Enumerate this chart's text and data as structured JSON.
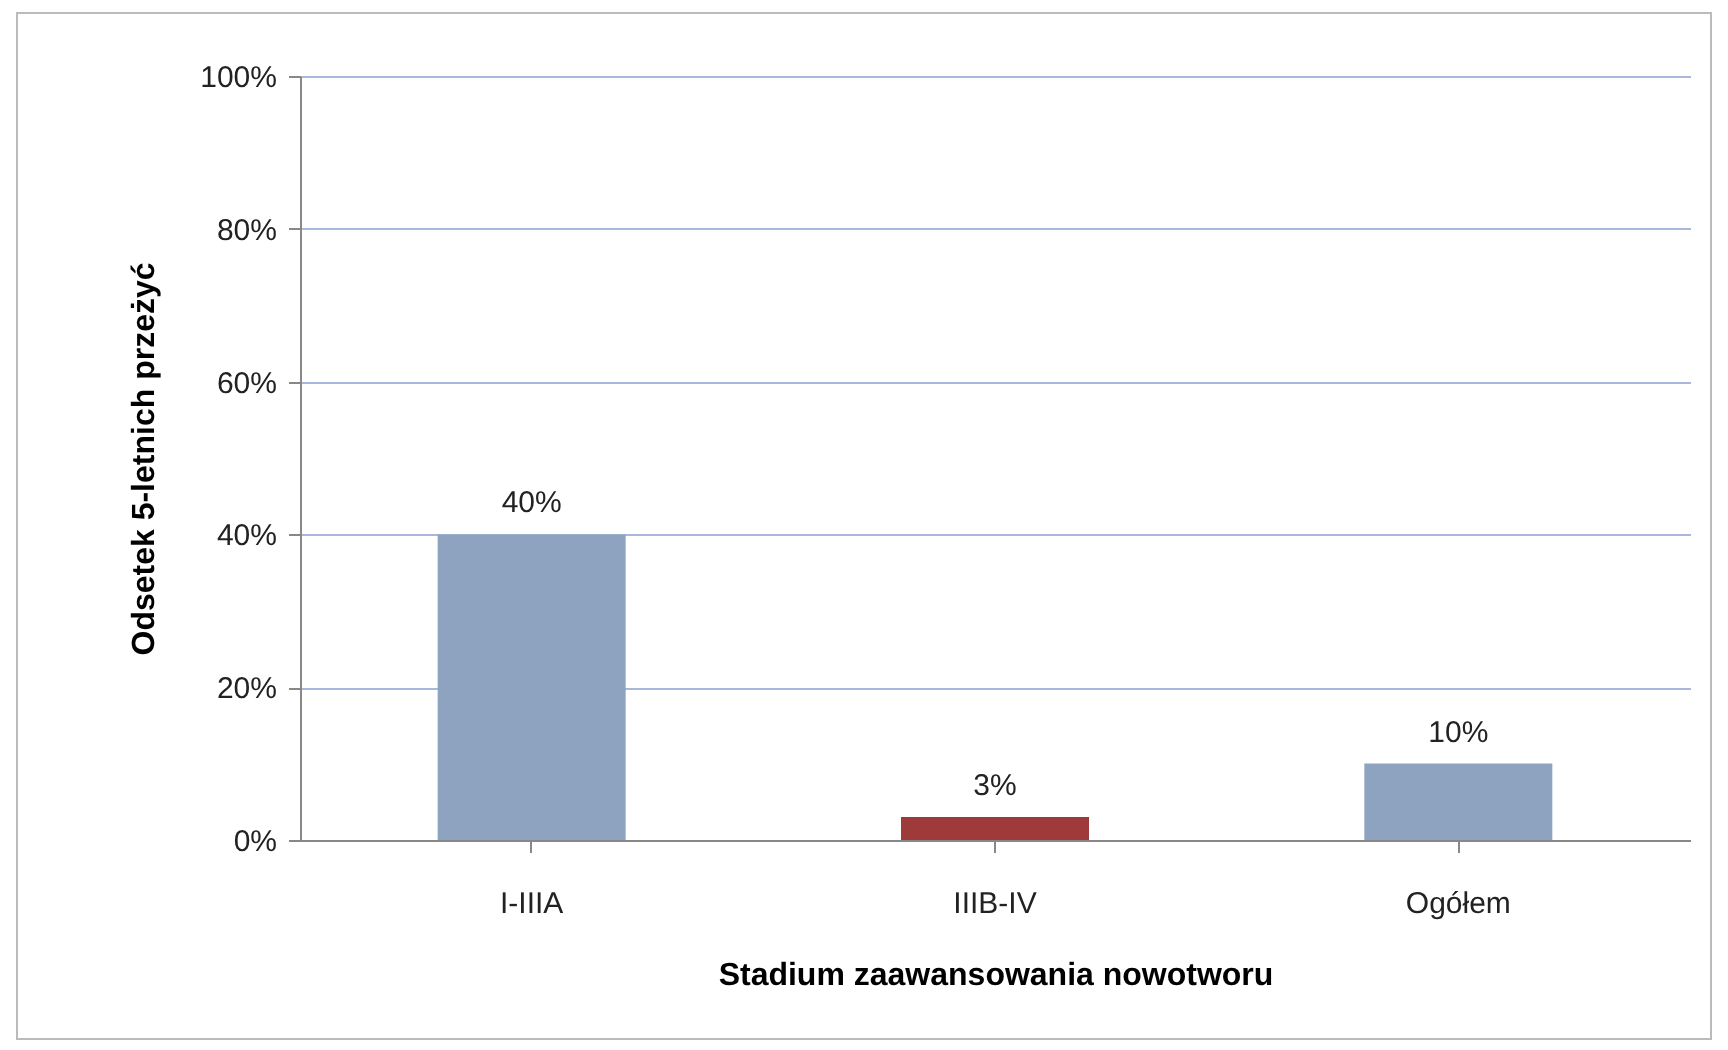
{
  "chart_data": {
    "type": "bar",
    "xlabel": "Stadium zaawansowania  nowotworu",
    "ylabel": "Odsetek 5-letnich przeżyć",
    "categories": [
      "I-IIIA",
      "IIIB-IV",
      "Ogółem"
    ],
    "values": [
      40,
      3,
      10
    ],
    "colors": [
      "#8ea3bf",
      "#9e3b3a",
      "#8ea3bf"
    ],
    "value_labels": [
      "40%",
      "3%",
      "10%"
    ],
    "ylim": [
      0,
      100
    ],
    "yticks": [
      {
        "value": 0,
        "label": "0%"
      },
      {
        "value": 20,
        "label": "20%"
      },
      {
        "value": 40,
        "label": "40%"
      },
      {
        "value": 60,
        "label": "60%"
      },
      {
        "value": 80,
        "label": "80%"
      },
      {
        "value": 100,
        "label": "100%"
      }
    ],
    "grid": "y"
  }
}
